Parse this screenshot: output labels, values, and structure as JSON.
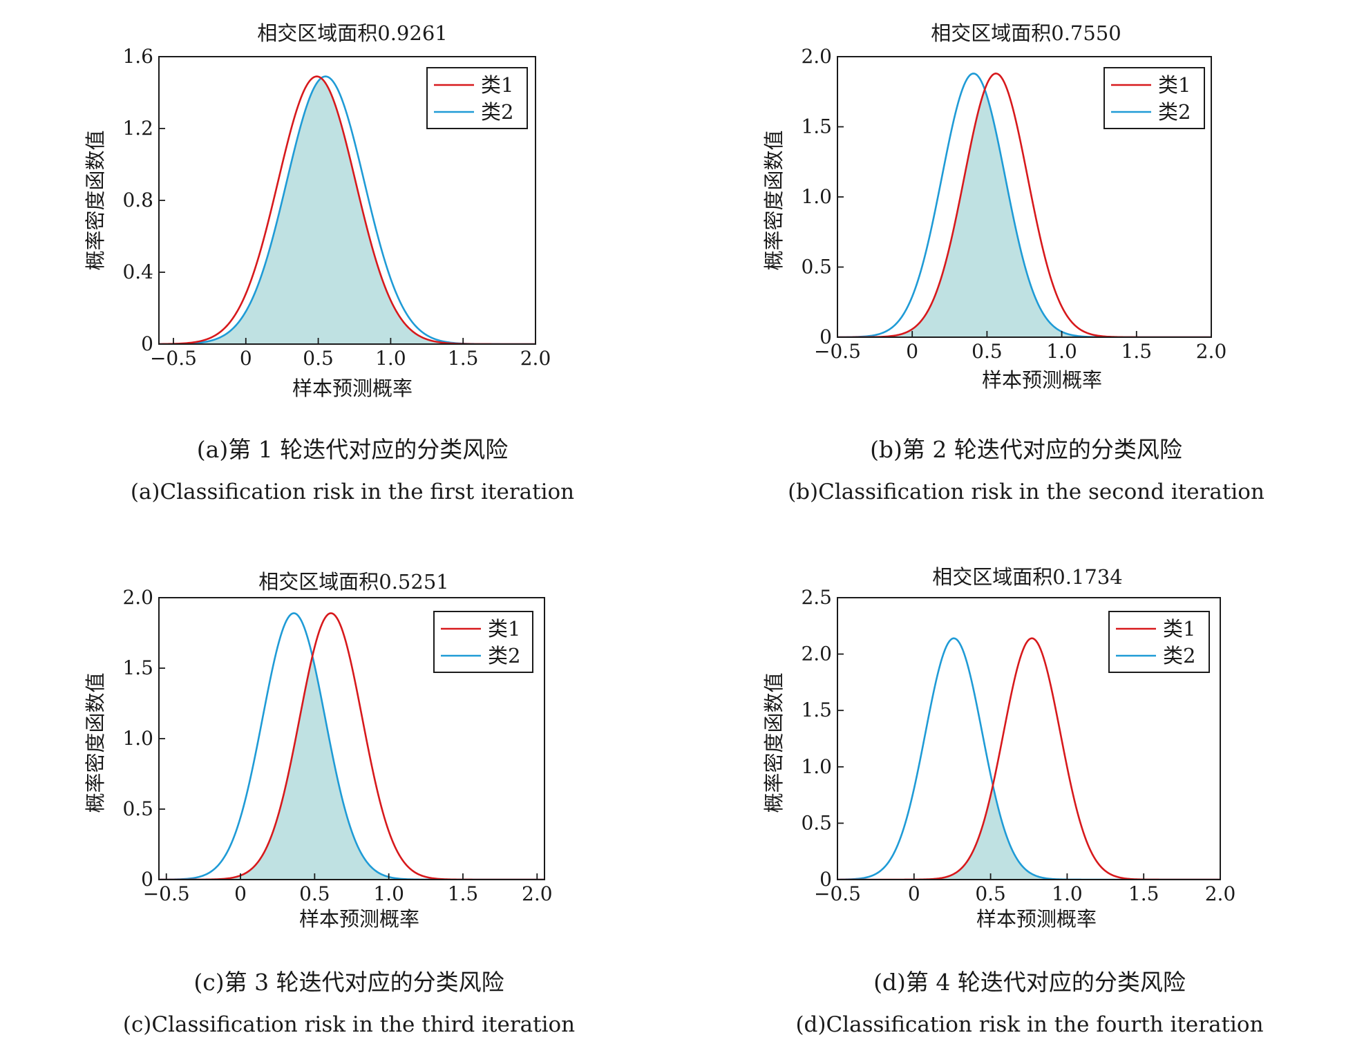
{
  "colors": {
    "class1": "#d7191c",
    "class2": "#1f9bd6",
    "fill": "#bfe1e2",
    "fill_stroke": "#1a1a1a",
    "axis": "#1a1a1a",
    "text": "#1a1a1a"
  },
  "chart_data": [
    {
      "type": "line",
      "panel": "a",
      "title": "相交区域面积0.9261",
      "xlabel": "样本预测概率",
      "ylabel": "概率密度函数值",
      "xlim": [
        -0.6,
        2.0
      ],
      "ylim": [
        0,
        1.6
      ],
      "xticks": [
        -0.5,
        0,
        0.5,
        1.0,
        1.5,
        2.0
      ],
      "xtick_labels": [
        "−0.5",
        "0",
        "0.5",
        "1.0",
        "1.5",
        "2.0"
      ],
      "yticks": [
        0,
        0.4,
        0.8,
        1.2,
        1.6
      ],
      "ytick_labels": [
        "0",
        "0.4",
        "0.8",
        "1.2",
        "1.6"
      ],
      "legend": {
        "position": "top-right",
        "entries": [
          "类1",
          "类2"
        ]
      },
      "series": [
        {
          "name": "类1",
          "mean": 0.49,
          "sd": 0.268,
          "peak": 1.49
        },
        {
          "name": "类2",
          "mean": 0.55,
          "sd": 0.268,
          "peak": 1.49
        }
      ],
      "overlap_area": 0.9261,
      "caption_cn": "(a)第 1 轮迭代对应的分类风险",
      "caption_en": "(a)Classification risk in the first iteration"
    },
    {
      "type": "line",
      "panel": "b",
      "title": "相交区域面积0.7550",
      "xlabel": "样本预测概率",
      "ylabel": "概率密度函数值",
      "xlim": [
        -0.5,
        2.0
      ],
      "ylim": [
        0,
        2.0
      ],
      "xticks": [
        -0.5,
        0,
        0.5,
        1.0,
        1.5,
        2.0
      ],
      "xtick_labels": [
        "−0.5",
        "0",
        "0.5",
        "1.0",
        "1.5",
        "2.0"
      ],
      "yticks": [
        0,
        0.5,
        1.0,
        1.5,
        2.0
      ],
      "ytick_labels": [
        "0",
        "0.5",
        "1.0",
        "1.5",
        "2.0"
      ],
      "legend": {
        "position": "top-right",
        "entries": [
          "类1",
          "类2"
        ]
      },
      "series": [
        {
          "name": "类1",
          "mean": 0.56,
          "sd": 0.212,
          "peak": 1.88
        },
        {
          "name": "类2",
          "mean": 0.41,
          "sd": 0.212,
          "peak": 1.88
        }
      ],
      "overlap_area": 0.755,
      "caption_cn": "(b)第 2 轮迭代对应的分类风险",
      "caption_en": "(b)Classification risk in the second iteration"
    },
    {
      "type": "line",
      "panel": "c",
      "title": "相交区域面积0.5251",
      "xlabel": "样本预测概率",
      "ylabel": "概率密度函数值",
      "xlim": [
        -0.55,
        2.05
      ],
      "ylim": [
        0,
        2.0
      ],
      "xticks": [
        -0.5,
        0,
        0.5,
        1.0,
        1.5,
        2.0
      ],
      "xtick_labels": [
        "−0.5",
        "0",
        "0.5",
        "1.0",
        "1.5",
        "2.0"
      ],
      "yticks": [
        0,
        0.5,
        1.0,
        1.5,
        2.0
      ],
      "ytick_labels": [
        "0",
        "0.5",
        "1.0",
        "1.5",
        "2.0"
      ],
      "legend": {
        "position": "top-right",
        "entries": [
          "类1",
          "类2"
        ]
      },
      "series": [
        {
          "name": "类1",
          "mean": 0.61,
          "sd": 0.211,
          "peak": 1.89
        },
        {
          "name": "类2",
          "mean": 0.36,
          "sd": 0.211,
          "peak": 1.89
        }
      ],
      "overlap_area": 0.5251,
      "caption_cn": "(c)第 3 轮迭代对应的分类风险",
      "caption_en": "(c)Classification risk in the third iteration"
    },
    {
      "type": "line",
      "panel": "d",
      "title": "相交区域面积0.1734",
      "xlabel": "样本预测概率",
      "ylabel": "概率密度函数值",
      "xlim": [
        -0.5,
        2.0
      ],
      "ylim": [
        0,
        2.5
      ],
      "xticks": [
        -0.5,
        0,
        0.5,
        1.0,
        1.5,
        2.0
      ],
      "xtick_labels": [
        "−0.5",
        "0",
        "0.5",
        "1.0",
        "1.5",
        "2.0"
      ],
      "yticks": [
        0,
        0.5,
        1.0,
        1.5,
        2.0,
        2.5
      ],
      "ytick_labels": [
        "0",
        "0.5",
        "1.0",
        "1.5",
        "2.0",
        "2.5"
      ],
      "legend": {
        "position": "top-right",
        "entries": [
          "类1",
          "类2"
        ]
      },
      "series": [
        {
          "name": "类1",
          "mean": 0.77,
          "sd": 0.186,
          "peak": 2.14
        },
        {
          "name": "类2",
          "mean": 0.26,
          "sd": 0.186,
          "peak": 2.14
        }
      ],
      "overlap_area": 0.1734,
      "caption_cn": "(d)第 4 轮迭代对应的分类风险",
      "caption_en": "(d)Classification risk in the fourth iteration"
    }
  ]
}
